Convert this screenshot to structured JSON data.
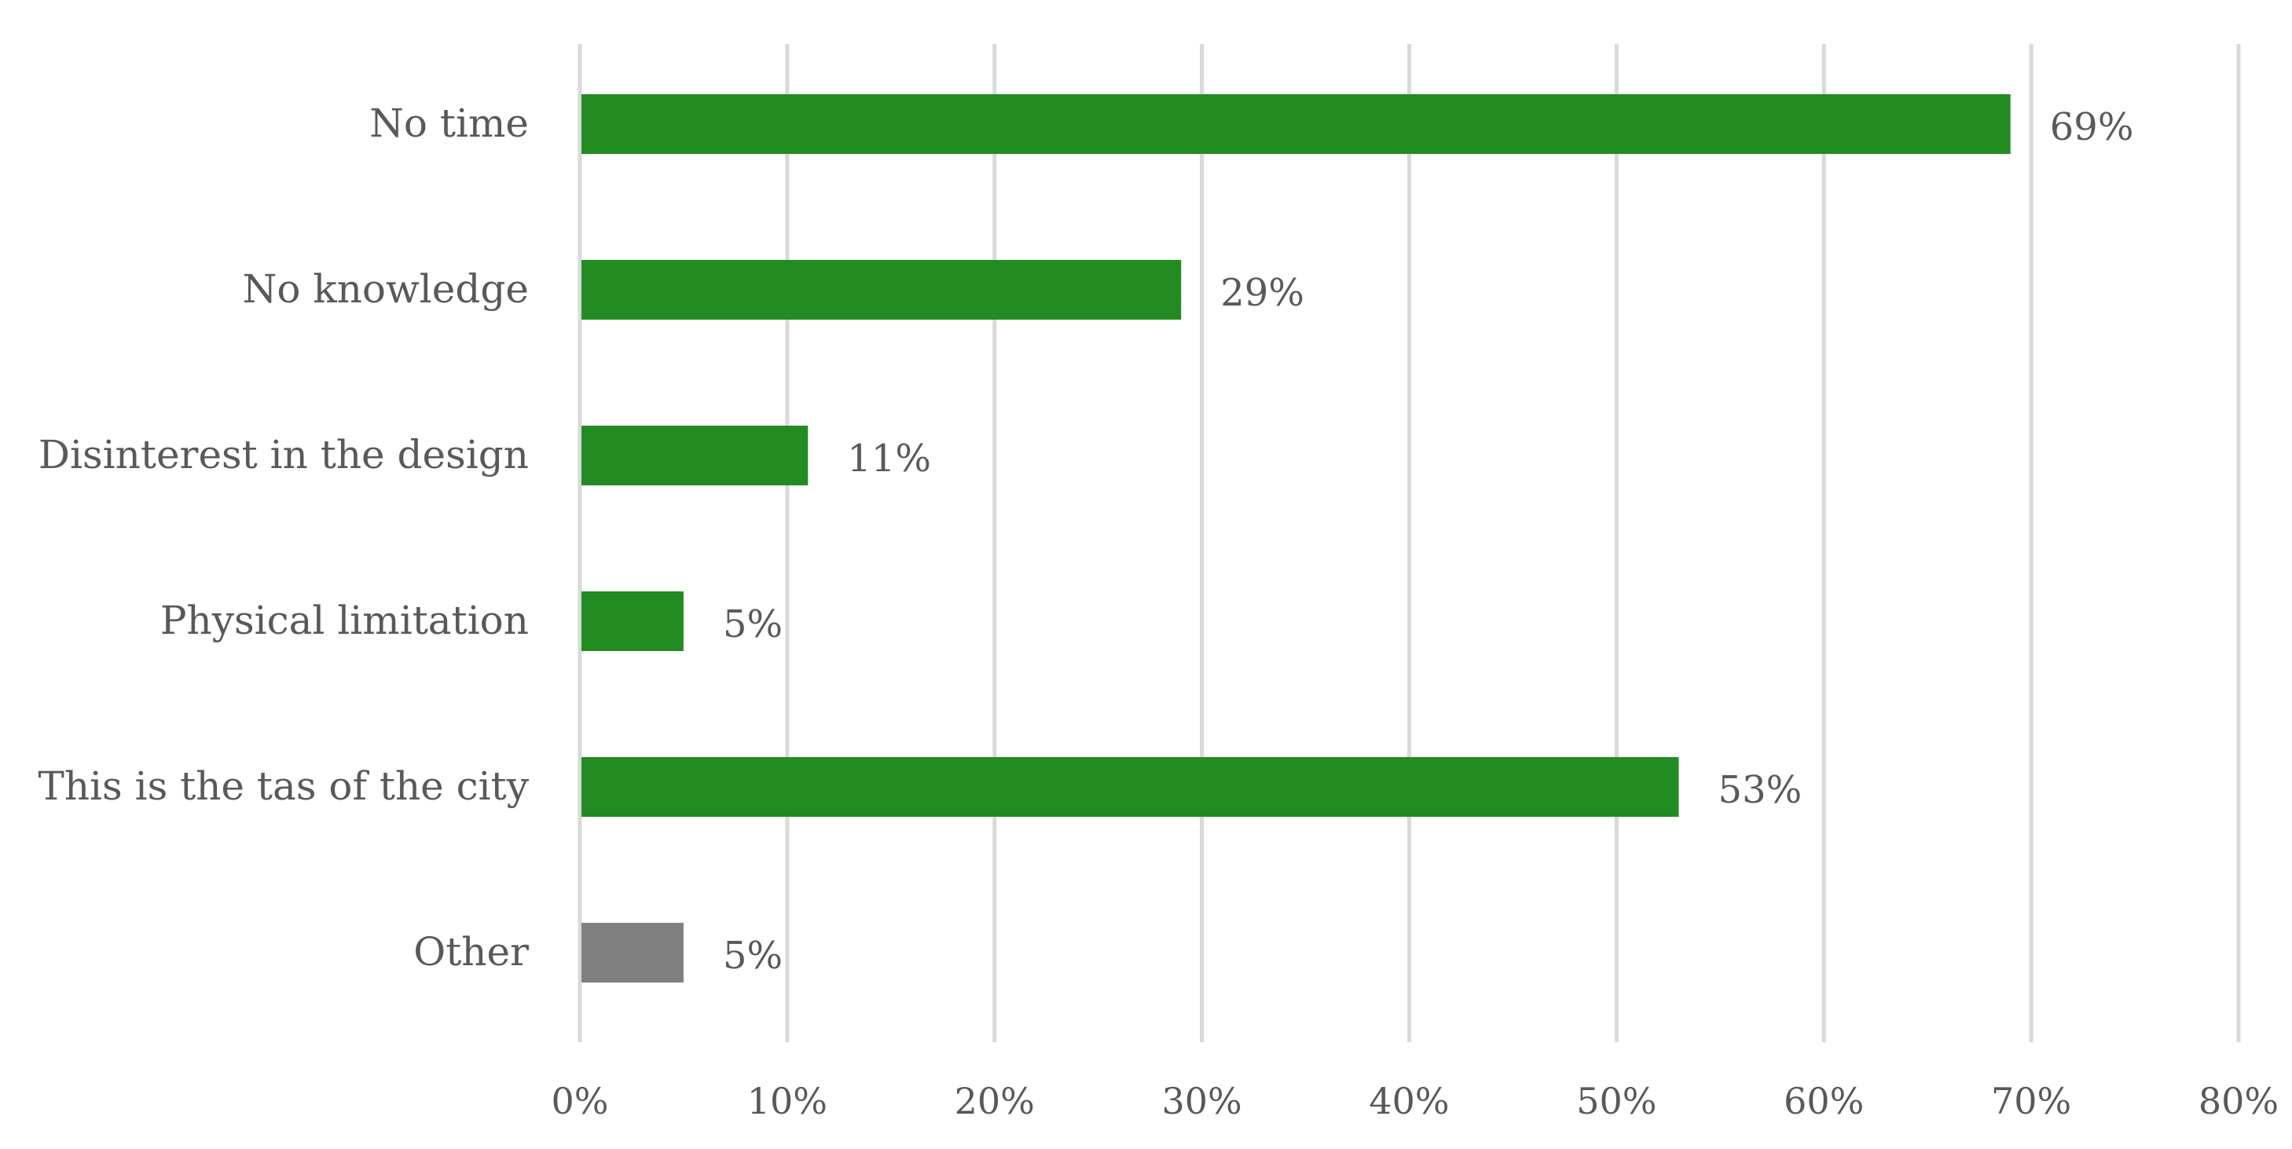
{
  "chart_data": {
    "type": "bar",
    "orientation": "horizontal",
    "categories": [
      "No time",
      "No knowledge",
      "Disinterest in the design",
      "Physical limitation",
      "This is the tas of the city",
      "Other"
    ],
    "values": [
      69,
      29,
      11,
      5,
      53,
      5
    ],
    "data_labels": [
      "69%",
      "29%",
      "11%",
      "5%",
      "53%",
      "5%"
    ],
    "bar_colors": [
      "#228B22",
      "#228B22",
      "#228B22",
      "#228B22",
      "#228B22",
      "#808080"
    ],
    "xlim": [
      0,
      80
    ],
    "x_ticks": [
      0,
      10,
      20,
      30,
      40,
      50,
      60,
      70,
      80
    ],
    "x_tick_labels": [
      "0%",
      "10%",
      "20%",
      "30%",
      "40%",
      "50%",
      "60%",
      "70%",
      "80%"
    ],
    "grid": "vertical",
    "grid_color": "#D9D9D9",
    "text_color": "#595959",
    "title": "",
    "xlabel": "",
    "ylabel": ""
  }
}
